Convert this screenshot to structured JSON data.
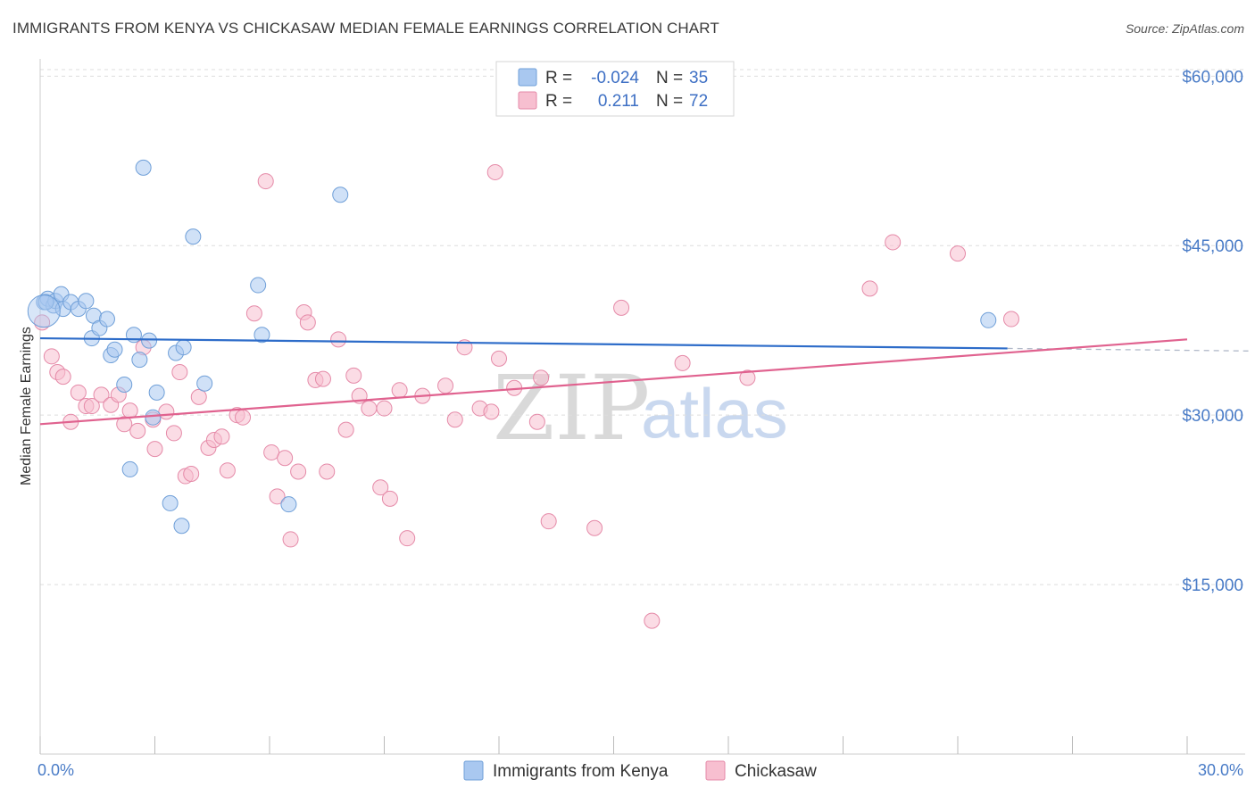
{
  "title": "IMMIGRANTS FROM KENYA VS CHICKASAW MEDIAN FEMALE EARNINGS CORRELATION CHART",
  "source": "Source: ZipAtlas.com",
  "watermark": {
    "zip": "ZIP",
    "atlas": "atlas"
  },
  "legend": {
    "r_label": "R =",
    "n_label": "N =",
    "series": [
      {
        "r": "-0.024",
        "n": "35"
      },
      {
        "r": "0.211",
        "n": "72"
      }
    ]
  },
  "colors": {
    "kenya_fill": "#a9c8f0",
    "kenya_stroke": "#6f9fd8",
    "kenya_line": "#2d6cc9",
    "chickasaw_fill": "#f7bfd0",
    "chickasaw_stroke": "#e58aa8",
    "chickasaw_line": "#e0628f",
    "tick_label": "#4a7cc7",
    "grid": "#dddddd"
  },
  "chart_data": {
    "type": "scatter",
    "xlabel": "",
    "ylabel": "Median Female Earnings",
    "xlim": [
      0,
      30
    ],
    "ylim": [
      0,
      62000
    ],
    "x_tick_labels": [
      "0.0%",
      "30.0%"
    ],
    "y_ticks": [
      15000,
      30000,
      45000,
      60000
    ],
    "y_tick_labels": [
      "$15,000",
      "$30,000",
      "$45,000",
      "$60,000"
    ],
    "grid": true,
    "legend_position": "top-center",
    "series": [
      {
        "name": "Immigrants from Kenya",
        "trend": {
          "x": [
            0,
            25.3
          ],
          "y": [
            36800,
            35900
          ]
        },
        "points": [
          [
            0.1,
            40000
          ],
          [
            0.2,
            40300
          ],
          [
            0.35,
            39700
          ],
          [
            0.4,
            40100
          ],
          [
            0.55,
            40700
          ],
          [
            0.6,
            39400
          ],
          [
            0.8,
            40000
          ],
          [
            1.0,
            39400
          ],
          [
            1.2,
            40100
          ],
          [
            1.4,
            38800
          ],
          [
            1.35,
            36800
          ],
          [
            1.55,
            37700
          ],
          [
            1.75,
            38500
          ],
          [
            1.85,
            35300
          ],
          [
            1.95,
            35800
          ],
          [
            2.2,
            32700
          ],
          [
            2.35,
            25200
          ],
          [
            2.45,
            37100
          ],
          [
            2.6,
            34900
          ],
          [
            2.7,
            51900
          ],
          [
            2.85,
            36600
          ],
          [
            2.95,
            29800
          ],
          [
            3.05,
            32000
          ],
          [
            3.4,
            22200
          ],
          [
            3.55,
            35500
          ],
          [
            3.7,
            20200
          ],
          [
            3.75,
            36000
          ],
          [
            4.0,
            45800
          ],
          [
            4.3,
            32800
          ],
          [
            5.7,
            41500
          ],
          [
            5.8,
            37100
          ],
          [
            6.5,
            22100
          ],
          [
            7.85,
            49500
          ],
          [
            24.8,
            38400
          ],
          [
            0.15,
            40000
          ]
        ]
      },
      {
        "name": "Chickasaw",
        "trend": {
          "x": [
            0,
            30
          ],
          "y": [
            29200,
            36700
          ]
        },
        "points": [
          [
            0.05,
            38200
          ],
          [
            0.3,
            35200
          ],
          [
            0.45,
            33800
          ],
          [
            0.6,
            33400
          ],
          [
            0.8,
            29400
          ],
          [
            1.0,
            32000
          ],
          [
            1.2,
            30800
          ],
          [
            1.35,
            30800
          ],
          [
            1.6,
            31800
          ],
          [
            1.85,
            30900
          ],
          [
            2.05,
            31800
          ],
          [
            2.2,
            29200
          ],
          [
            2.35,
            30400
          ],
          [
            2.55,
            28600
          ],
          [
            2.7,
            36000
          ],
          [
            2.95,
            29600
          ],
          [
            3.0,
            27000
          ],
          [
            3.3,
            30300
          ],
          [
            3.5,
            28400
          ],
          [
            3.65,
            33800
          ],
          [
            3.8,
            24600
          ],
          [
            3.95,
            24800
          ],
          [
            4.15,
            31600
          ],
          [
            4.4,
            27100
          ],
          [
            4.55,
            27800
          ],
          [
            4.75,
            28100
          ],
          [
            4.9,
            25100
          ],
          [
            5.15,
            30000
          ],
          [
            5.3,
            29800
          ],
          [
            5.6,
            39000
          ],
          [
            5.9,
            50700
          ],
          [
            6.05,
            26700
          ],
          [
            6.2,
            22800
          ],
          [
            6.4,
            26200
          ],
          [
            6.55,
            19000
          ],
          [
            6.75,
            25000
          ],
          [
            6.9,
            39100
          ],
          [
            7.0,
            38200
          ],
          [
            7.2,
            33100
          ],
          [
            7.4,
            33200
          ],
          [
            7.5,
            25000
          ],
          [
            7.8,
            36700
          ],
          [
            8.0,
            28700
          ],
          [
            8.2,
            33500
          ],
          [
            8.35,
            31700
          ],
          [
            8.6,
            30600
          ],
          [
            8.9,
            23600
          ],
          [
            9.0,
            30600
          ],
          [
            9.15,
            22600
          ],
          [
            9.4,
            32200
          ],
          [
            9.6,
            19100
          ],
          [
            10.0,
            31700
          ],
          [
            10.6,
            32600
          ],
          [
            10.85,
            29600
          ],
          [
            11.1,
            36000
          ],
          [
            11.5,
            30600
          ],
          [
            11.8,
            30300
          ],
          [
            11.9,
            51500
          ],
          [
            12.0,
            35000
          ],
          [
            12.4,
            32400
          ],
          [
            13.0,
            29400
          ],
          [
            13.1,
            33300
          ],
          [
            13.3,
            20600
          ],
          [
            14.5,
            20000
          ],
          [
            15.2,
            39500
          ],
          [
            16.0,
            11800
          ],
          [
            16.8,
            34600
          ],
          [
            18.5,
            33300
          ],
          [
            21.7,
            41200
          ],
          [
            22.3,
            45300
          ],
          [
            24.0,
            44300
          ],
          [
            25.4,
            38500
          ]
        ]
      }
    ]
  }
}
